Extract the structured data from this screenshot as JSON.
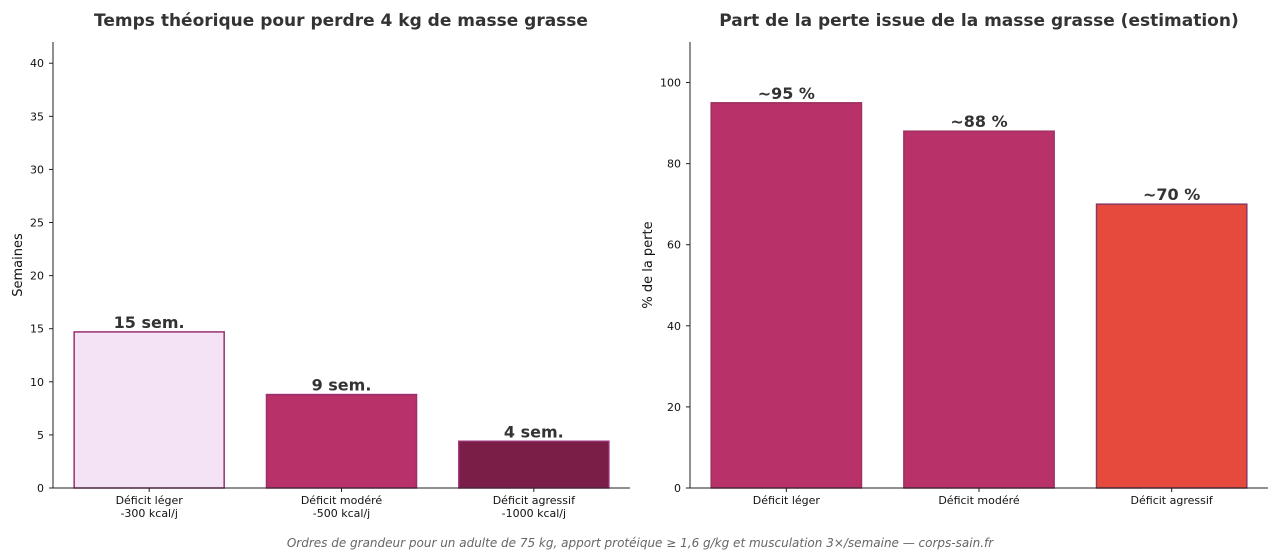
{
  "chart_data": [
    {
      "type": "bar",
      "title": "Temps théorique pour perdre 4 kg de masse grasse",
      "xlabel": "",
      "ylabel": "Semaines",
      "ylim": [
        0,
        42
      ],
      "yticks": [
        0,
        5,
        10,
        15,
        20,
        25,
        30,
        35,
        40
      ],
      "categories": [
        [
          "Déficit léger",
          "-300 kcal/j"
        ],
        [
          "Déficit modéré",
          "-500 kcal/j"
        ],
        [
          "Déficit agressif",
          "-1000 kcal/j"
        ]
      ],
      "values": [
        14.7,
        8.8,
        4.4
      ],
      "data_labels": [
        "15 sem.",
        "9 sem.",
        "4 sem."
      ],
      "colors": [
        "#f4e3f4",
        "#b83168",
        "#7a1e48"
      ],
      "edge_colors": [
        "#9a2f72",
        "#9a2f72",
        "#9a2f72"
      ],
      "grid": false
    },
    {
      "type": "bar",
      "title": "Part de la perte issue de la masse grasse (estimation)",
      "xlabel": "",
      "ylabel": "% de la perte",
      "ylim": [
        0,
        110
      ],
      "yticks": [
        0,
        20,
        40,
        60,
        80,
        100
      ],
      "categories": [
        [
          "Déficit léger"
        ],
        [
          "Déficit modéré"
        ],
        [
          "Déficit agressif"
        ]
      ],
      "values": [
        95,
        88,
        70
      ],
      "data_labels": [
        "~95 %",
        "~88 %",
        "~70 %"
      ],
      "colors": [
        "#b83168",
        "#b83168",
        "#e64a3d"
      ],
      "edge_colors": [
        "#a0305f",
        "#a0305f",
        "#8a3a5f"
      ],
      "grid": false
    }
  ],
  "footnote": "Ordres de grandeur pour un adulte de 75 kg, apport protéique ≥ 1,6 g/kg et musculation 3×/semaine — corps-sain.fr"
}
